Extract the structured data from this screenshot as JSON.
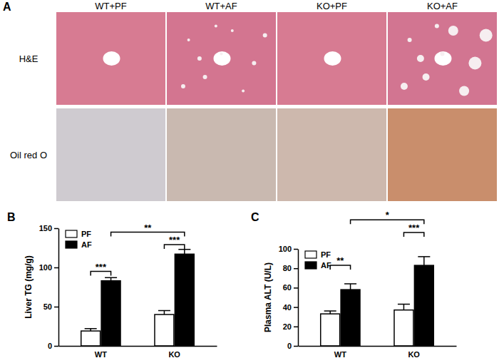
{
  "figure": {
    "panel_a": {
      "label": "A",
      "columns": [
        "WT+PF",
        "WT+AF",
        "KO+PF",
        "KO+AF"
      ],
      "rows": [
        "H&E",
        "Oil red O"
      ]
    },
    "panel_labels": [
      "B",
      "C"
    ]
  },
  "chart_data": [
    {
      "type": "bar",
      "y_label": "Liver TG (mg/g)",
      "categories": [
        "WT",
        "KO"
      ],
      "series": [
        {
          "name": "PF",
          "color": "#ffffff",
          "values": [
            19,
            40
          ],
          "errors": [
            3,
            5
          ]
        },
        {
          "name": "AF",
          "color": "#000000",
          "values": [
            83,
            117
          ],
          "errors": [
            4,
            6
          ]
        }
      ],
      "ylim": [
        0,
        150
      ],
      "yticks": [
        0,
        50,
        100,
        150
      ],
      "legend": "upper left",
      "annotations": [
        {
          "text": "***",
          "between": [
            [
              "PF",
              "WT"
            ],
            [
              "AF",
              "WT"
            ]
          ],
          "y": 95
        },
        {
          "text": "***",
          "between": [
            [
              "PF",
              "KO"
            ],
            [
              "AF",
              "KO"
            ]
          ],
          "y": 129
        },
        {
          "text": "**",
          "between": [
            [
              "AF",
              "WT"
            ],
            [
              "AF",
              "KO"
            ]
          ],
          "y": 145
        }
      ]
    },
    {
      "type": "bar",
      "y_label": "Plasma ALT (U/L)",
      "categories": [
        "WT",
        "KO"
      ],
      "series": [
        {
          "name": "PF",
          "color": "#ffffff",
          "values": [
            33,
            37
          ],
          "errors": [
            3,
            6
          ]
        },
        {
          "name": "AF",
          "color": "#000000",
          "values": [
            58,
            83
          ],
          "errors": [
            6,
            9
          ]
        }
      ],
      "ylim": [
        0,
        100
      ],
      "yticks": [
        0,
        20,
        40,
        60,
        80,
        100
      ],
      "legend": "upper left",
      "annotations": [
        {
          "text": "**",
          "between": [
            [
              "PF",
              "WT"
            ],
            [
              "AF",
              "WT"
            ]
          ],
          "y": 83
        },
        {
          "text": "***",
          "between": [
            [
              "PF",
              "KO"
            ],
            [
              "AF",
              "KO"
            ]
          ],
          "y": 117
        },
        {
          "text": "*",
          "between": [
            [
              "AF",
              "WT"
            ],
            [
              "AF",
              "KO"
            ]
          ],
          "y": 130
        }
      ]
    }
  ]
}
